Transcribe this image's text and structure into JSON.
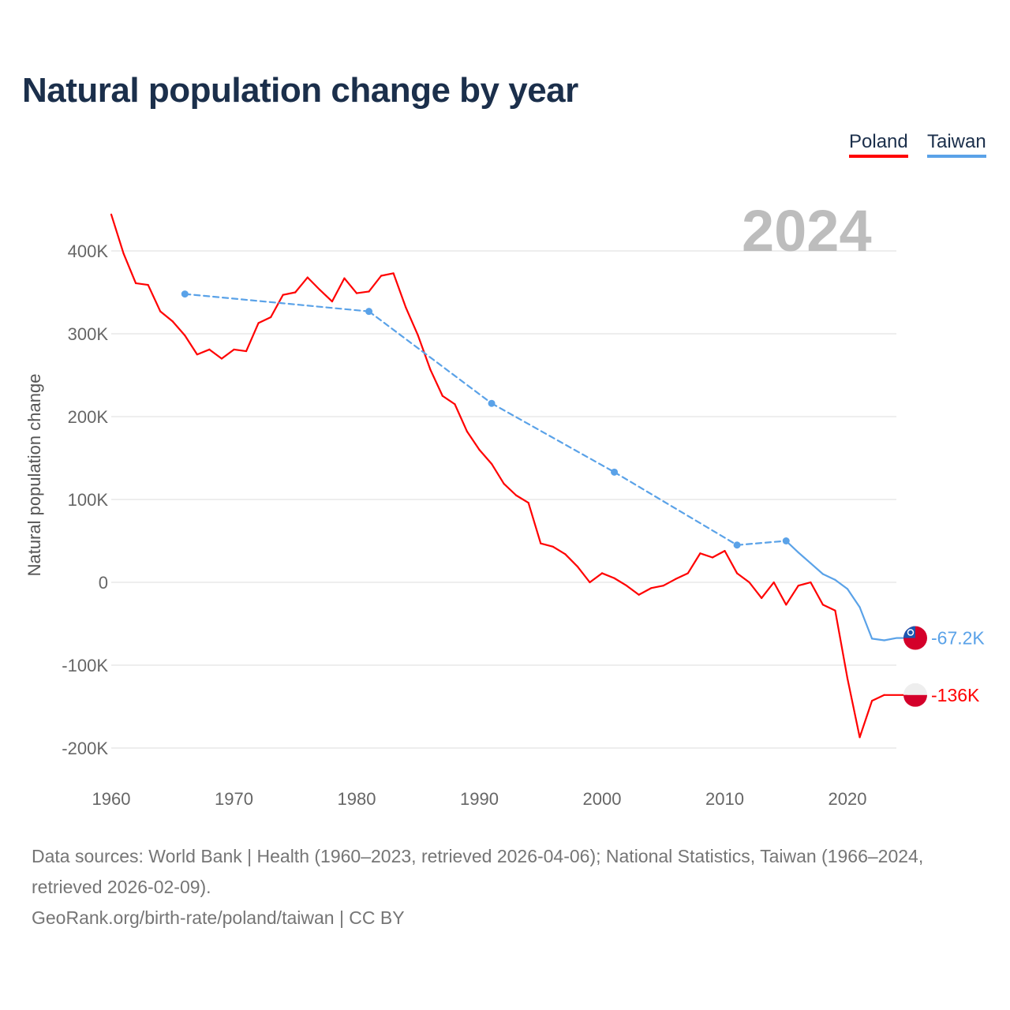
{
  "title": "Natural population change by year",
  "legend": [
    {
      "label": "Poland",
      "color": "#ff0000"
    },
    {
      "label": "Taiwan",
      "color": "#5aa2e8"
    }
  ],
  "year_overlay": "2024",
  "footer": {
    "sources": "Data sources: World Bank | Health (1960–2023, retrieved 2026-04-06); National Statistics, Taiwan (1966–2024, retrieved 2026-02-09).",
    "credit": "GeoRank.org/birth-rate/poland/taiwan | CC BY"
  },
  "chart_data": {
    "type": "line",
    "title": "Natural population change by year",
    "xlabel": "",
    "ylabel": "Natural population change",
    "xlim": [
      1960,
      2024
    ],
    "ylim": [
      -200000,
      400000
    ],
    "x_ticks": [
      "1960",
      "1970",
      "1980",
      "1990",
      "2000",
      "2010",
      "2020"
    ],
    "y_ticks": [
      {
        "v": 400000,
        "label": "400K"
      },
      {
        "v": 300000,
        "label": "300K"
      },
      {
        "v": 200000,
        "label": "200K"
      },
      {
        "v": 100000,
        "label": "100K"
      },
      {
        "v": 0,
        "label": "0"
      },
      {
        "v": -100000,
        "label": "-100K"
      },
      {
        "v": -200000,
        "label": "-200K"
      }
    ],
    "grid": true,
    "legend_position": "top-right",
    "series": [
      {
        "name": "Poland",
        "color": "#ff0000",
        "end_label": "-136K",
        "flag": "poland",
        "x": [
          1960,
          1961,
          1962,
          1963,
          1964,
          1965,
          1966,
          1967,
          1968,
          1969,
          1970,
          1971,
          1972,
          1973,
          1974,
          1975,
          1976,
          1977,
          1978,
          1979,
          1980,
          1981,
          1982,
          1983,
          1984,
          1985,
          1986,
          1987,
          1988,
          1989,
          1990,
          1991,
          1992,
          1993,
          1994,
          1995,
          1996,
          1997,
          1998,
          1999,
          2000,
          2001,
          2002,
          2003,
          2004,
          2005,
          2006,
          2007,
          2008,
          2009,
          2010,
          2011,
          2012,
          2013,
          2014,
          2015,
          2016,
          2017,
          2018,
          2019,
          2020,
          2021,
          2022,
          2023
        ],
        "y": [
          444,
          397,
          361,
          359,
          327,
          315,
          298,
          275,
          281,
          270,
          281,
          279,
          313,
          320,
          347,
          350,
          368,
          353,
          339,
          367,
          349,
          351,
          370,
          373,
          332,
          298,
          257,
          225,
          215,
          182,
          160,
          143,
          119,
          105,
          96,
          47,
          43,
          34,
          19,
          0,
          11,
          5,
          -4,
          -15,
          -7,
          -4,
          4,
          11,
          35,
          30,
          38,
          11,
          0,
          -19,
          0,
          -27,
          -4,
          0,
          -27,
          -34,
          -116,
          -187,
          -143,
          -136
        ]
      },
      {
        "name": "Taiwan",
        "color": "#5aa2e8",
        "end_label": "-67.2K",
        "flag": "taiwan",
        "x": [
          1966,
          1981,
          1991,
          2001,
          2011,
          2015,
          2016,
          2017,
          2018,
          2019,
          2020,
          2021,
          2022,
          2023,
          2024
        ],
        "y": [
          348,
          327,
          216,
          133,
          45,
          50,
          36,
          23,
          10,
          3,
          -8,
          -30,
          -68,
          -70,
          -67.2
        ]
      }
    ],
    "y_units": "thousands"
  }
}
